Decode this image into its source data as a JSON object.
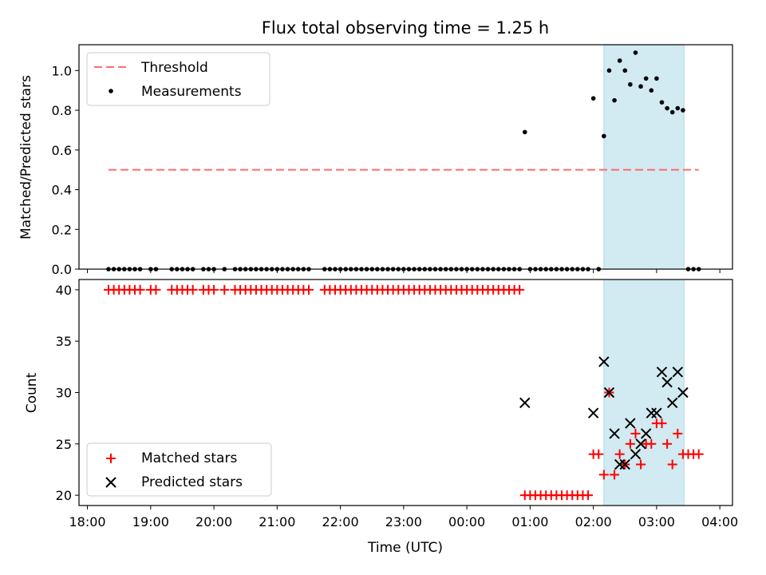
{
  "chart_data": [
    {
      "type": "scatter",
      "panel": "top",
      "title": "Flux total observing time = 1.25 h",
      "ylabel": "Matched/Predicted stars",
      "xlabel": "",
      "ylim": [
        0,
        1.13
      ],
      "yticks": [
        0.0,
        0.2,
        0.4,
        0.6,
        0.8,
        1.0
      ],
      "ytick_labels": [
        "0.0",
        "0.2",
        "0.4",
        "0.6",
        "0.8",
        "1.0"
      ],
      "highlight_span": {
        "from": "02:10",
        "to": "03:26",
        "color": "#add8e6"
      },
      "threshold": {
        "label": "Threshold",
        "value": 0.5,
        "from": "18:20",
        "to": "03:40",
        "color": "#ff6b6b"
      },
      "legend": [
        "Threshold",
        "Measurements"
      ],
      "legend_position": "top-left",
      "series": [
        {
          "name": "Measurements",
          "marker": "dot",
          "color": "#000000",
          "points": [
            [
              "18:20",
              0
            ],
            [
              "18:25",
              0
            ],
            [
              "18:30",
              0
            ],
            [
              "18:35",
              0
            ],
            [
              "18:40",
              0
            ],
            [
              "18:45",
              0
            ],
            [
              "18:50",
              0
            ],
            [
              "19:00",
              0
            ],
            [
              "19:05",
              0
            ],
            [
              "19:20",
              0
            ],
            [
              "19:25",
              0
            ],
            [
              "19:30",
              0
            ],
            [
              "19:35",
              0
            ],
            [
              "19:40",
              0
            ],
            [
              "19:50",
              0
            ],
            [
              "19:55",
              0
            ],
            [
              "20:00",
              0
            ],
            [
              "20:10",
              0
            ],
            [
              "20:20",
              0
            ],
            [
              "20:25",
              0
            ],
            [
              "20:30",
              0
            ],
            [
              "20:35",
              0
            ],
            [
              "20:40",
              0
            ],
            [
              "20:45",
              0
            ],
            [
              "20:50",
              0
            ],
            [
              "20:55",
              0
            ],
            [
              "21:00",
              0
            ],
            [
              "21:05",
              0
            ],
            [
              "21:10",
              0
            ],
            [
              "21:15",
              0
            ],
            [
              "21:20",
              0
            ],
            [
              "21:25",
              0
            ],
            [
              "21:30",
              0
            ],
            [
              "21:45",
              0
            ],
            [
              "21:50",
              0
            ],
            [
              "21:55",
              0
            ],
            [
              "22:00",
              0
            ],
            [
              "22:05",
              0
            ],
            [
              "22:10",
              0
            ],
            [
              "22:15",
              0
            ],
            [
              "22:20",
              0
            ],
            [
              "22:25",
              0
            ],
            [
              "22:30",
              0
            ],
            [
              "22:35",
              0
            ],
            [
              "22:40",
              0
            ],
            [
              "22:45",
              0
            ],
            [
              "22:50",
              0
            ],
            [
              "22:55",
              0
            ],
            [
              "23:00",
              0
            ],
            [
              "23:05",
              0
            ],
            [
              "23:10",
              0
            ],
            [
              "23:15",
              0
            ],
            [
              "23:20",
              0
            ],
            [
              "23:25",
              0
            ],
            [
              "23:30",
              0
            ],
            [
              "23:35",
              0
            ],
            [
              "23:40",
              0
            ],
            [
              "23:45",
              0
            ],
            [
              "23:50",
              0
            ],
            [
              "23:55",
              0
            ],
            [
              "00:00",
              0
            ],
            [
              "00:05",
              0
            ],
            [
              "00:10",
              0
            ],
            [
              "00:15",
              0
            ],
            [
              "00:20",
              0
            ],
            [
              "00:25",
              0
            ],
            [
              "00:30",
              0
            ],
            [
              "00:35",
              0
            ],
            [
              "00:40",
              0
            ],
            [
              "00:45",
              0
            ],
            [
              "00:50",
              0
            ],
            [
              "00:55",
              0.69
            ],
            [
              "01:00",
              0
            ],
            [
              "01:05",
              0
            ],
            [
              "01:10",
              0
            ],
            [
              "01:15",
              0
            ],
            [
              "01:20",
              0
            ],
            [
              "01:25",
              0
            ],
            [
              "01:30",
              0
            ],
            [
              "01:35",
              0
            ],
            [
              "01:40",
              0
            ],
            [
              "01:45",
              0
            ],
            [
              "01:50",
              0
            ],
            [
              "01:55",
              0
            ],
            [
              "02:00",
              0.86
            ],
            [
              "02:05",
              0
            ],
            [
              "02:10",
              0.67
            ],
            [
              "02:15",
              1.0
            ],
            [
              "02:20",
              0.85
            ],
            [
              "02:25",
              1.05
            ],
            [
              "02:30",
              1.0
            ],
            [
              "02:35",
              0.93
            ],
            [
              "02:40",
              1.09
            ],
            [
              "02:45",
              0.92
            ],
            [
              "02:50",
              0.96
            ],
            [
              "02:55",
              0.9
            ],
            [
              "03:00",
              0.96
            ],
            [
              "03:05",
              0.84
            ],
            [
              "03:10",
              0.81
            ],
            [
              "03:15",
              0.79
            ],
            [
              "03:20",
              0.81
            ],
            [
              "03:25",
              0.8
            ],
            [
              "03:30",
              0
            ],
            [
              "03:35",
              0
            ],
            [
              "03:40",
              0
            ]
          ]
        }
      ]
    },
    {
      "type": "scatter",
      "panel": "bottom",
      "title": "",
      "ylabel": "Count",
      "xlabel": "Time (UTC)",
      "ylim": [
        19,
        41
      ],
      "yticks": [
        20,
        25,
        30,
        35,
        40
      ],
      "ytick_labels": [
        "20",
        "25",
        "30",
        "35",
        "40"
      ],
      "xticks": [
        "18:00",
        "19:00",
        "20:00",
        "21:00",
        "22:00",
        "23:00",
        "00:00",
        "01:00",
        "02:00",
        "03:00",
        "04:00"
      ],
      "xlim": [
        "17:52",
        "04:12"
      ],
      "highlight_span": {
        "from": "02:10",
        "to": "03:26",
        "color": "#add8e6"
      },
      "legend": [
        "Matched stars",
        "Predicted stars"
      ],
      "legend_position": "bottom-left",
      "series": [
        {
          "name": "Matched stars",
          "marker": "plus",
          "color": "#ff0000",
          "points": [
            [
              "18:20",
              40
            ],
            [
              "18:25",
              40
            ],
            [
              "18:30",
              40
            ],
            [
              "18:35",
              40
            ],
            [
              "18:40",
              40
            ],
            [
              "18:45",
              40
            ],
            [
              "18:50",
              40
            ],
            [
              "19:00",
              40
            ],
            [
              "19:05",
              40
            ],
            [
              "19:20",
              40
            ],
            [
              "19:25",
              40
            ],
            [
              "19:30",
              40
            ],
            [
              "19:35",
              40
            ],
            [
              "19:40",
              40
            ],
            [
              "19:50",
              40
            ],
            [
              "19:55",
              40
            ],
            [
              "20:00",
              40
            ],
            [
              "20:10",
              40
            ],
            [
              "20:20",
              40
            ],
            [
              "20:25",
              40
            ],
            [
              "20:30",
              40
            ],
            [
              "20:35",
              40
            ],
            [
              "20:40",
              40
            ],
            [
              "20:45",
              40
            ],
            [
              "20:50",
              40
            ],
            [
              "20:55",
              40
            ],
            [
              "21:00",
              40
            ],
            [
              "21:05",
              40
            ],
            [
              "21:10",
              40
            ],
            [
              "21:15",
              40
            ],
            [
              "21:20",
              40
            ],
            [
              "21:25",
              40
            ],
            [
              "21:30",
              40
            ],
            [
              "21:45",
              40
            ],
            [
              "21:50",
              40
            ],
            [
              "21:55",
              40
            ],
            [
              "22:00",
              40
            ],
            [
              "22:05",
              40
            ],
            [
              "22:10",
              40
            ],
            [
              "22:15",
              40
            ],
            [
              "22:20",
              40
            ],
            [
              "22:25",
              40
            ],
            [
              "22:30",
              40
            ],
            [
              "22:35",
              40
            ],
            [
              "22:40",
              40
            ],
            [
              "22:45",
              40
            ],
            [
              "22:50",
              40
            ],
            [
              "22:55",
              40
            ],
            [
              "23:00",
              40
            ],
            [
              "23:05",
              40
            ],
            [
              "23:10",
              40
            ],
            [
              "23:15",
              40
            ],
            [
              "23:20",
              40
            ],
            [
              "23:25",
              40
            ],
            [
              "23:30",
              40
            ],
            [
              "23:35",
              40
            ],
            [
              "23:40",
              40
            ],
            [
              "23:45",
              40
            ],
            [
              "23:50",
              40
            ],
            [
              "23:55",
              40
            ],
            [
              "00:00",
              40
            ],
            [
              "00:05",
              40
            ],
            [
              "00:10",
              40
            ],
            [
              "00:15",
              40
            ],
            [
              "00:20",
              40
            ],
            [
              "00:25",
              40
            ],
            [
              "00:30",
              40
            ],
            [
              "00:35",
              40
            ],
            [
              "00:40",
              40
            ],
            [
              "00:45",
              40
            ],
            [
              "00:50",
              40
            ],
            [
              "00:55",
              20
            ],
            [
              "01:00",
              20
            ],
            [
              "01:05",
              20
            ],
            [
              "01:10",
              20
            ],
            [
              "01:15",
              20
            ],
            [
              "01:20",
              20
            ],
            [
              "01:25",
              20
            ],
            [
              "01:30",
              20
            ],
            [
              "01:35",
              20
            ],
            [
              "01:40",
              20
            ],
            [
              "01:45",
              20
            ],
            [
              "01:50",
              20
            ],
            [
              "01:55",
              20
            ],
            [
              "02:00",
              24
            ],
            [
              "02:05",
              24
            ],
            [
              "02:10",
              22
            ],
            [
              "02:15",
              30
            ],
            [
              "02:20",
              22
            ],
            [
              "02:25",
              24
            ],
            [
              "02:30",
              23
            ],
            [
              "02:35",
              25
            ],
            [
              "02:40",
              26
            ],
            [
              "02:45",
              23
            ],
            [
              "02:50",
              25
            ],
            [
              "02:55",
              25
            ],
            [
              "03:00",
              27
            ],
            [
              "03:05",
              27
            ],
            [
              "03:10",
              25
            ],
            [
              "03:15",
              23
            ],
            [
              "03:20",
              26
            ],
            [
              "03:25",
              24
            ],
            [
              "03:30",
              24
            ],
            [
              "03:35",
              24
            ],
            [
              "03:40",
              24
            ]
          ]
        },
        {
          "name": "Predicted stars",
          "marker": "x",
          "color": "#000000",
          "points": [
            [
              "00:55",
              29
            ],
            [
              "02:00",
              28
            ],
            [
              "02:10",
              33
            ],
            [
              "02:15",
              30
            ],
            [
              "02:20",
              26
            ],
            [
              "02:25",
              23
            ],
            [
              "02:30",
              23
            ],
            [
              "02:35",
              27
            ],
            [
              "02:40",
              24
            ],
            [
              "02:45",
              25
            ],
            [
              "02:50",
              26
            ],
            [
              "02:55",
              28
            ],
            [
              "03:00",
              28
            ],
            [
              "03:05",
              32
            ],
            [
              "03:10",
              31
            ],
            [
              "03:15",
              29
            ],
            [
              "03:20",
              32
            ],
            [
              "03:25",
              30
            ]
          ]
        }
      ]
    }
  ]
}
